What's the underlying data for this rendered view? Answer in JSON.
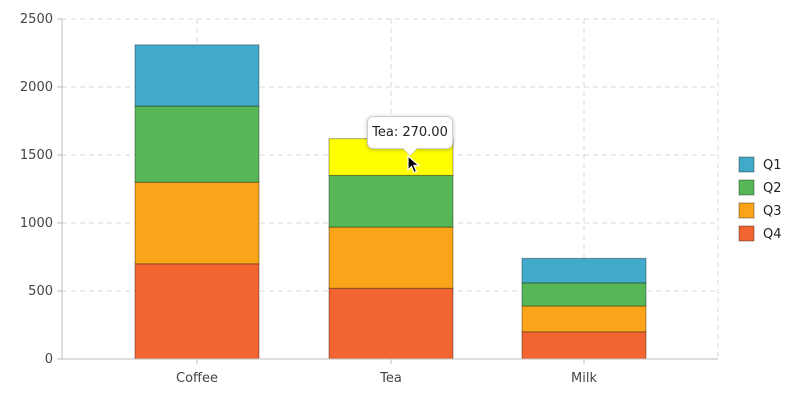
{
  "chart_data": {
    "type": "bar",
    "stacked": true,
    "categories": [
      "Coffee",
      "Tea",
      "Milk"
    ],
    "series": [
      {
        "name": "Q4",
        "color": "#f26430",
        "values": [
          700,
          520,
          200
        ]
      },
      {
        "name": "Q3",
        "color": "#faa41a",
        "values": [
          600,
          450,
          190
        ]
      },
      {
        "name": "Q2",
        "color": "#57b757",
        "values": [
          560,
          380,
          170
        ]
      },
      {
        "name": "Q1",
        "color": "#41a9c9",
        "values": [
          450,
          270,
          180
        ]
      }
    ],
    "legend_order": [
      "Q1",
      "Q2",
      "Q3",
      "Q4"
    ],
    "ylim": [
      0,
      2500
    ],
    "yticks": [
      0,
      500,
      1000,
      1500,
      2000,
      2500
    ],
    "grid": true,
    "legend_position": "right",
    "highlight": {
      "category_index": 1,
      "series": "Q1",
      "color": "#ffff00"
    }
  },
  "tooltip": {
    "text": "Tea: 270.00"
  }
}
